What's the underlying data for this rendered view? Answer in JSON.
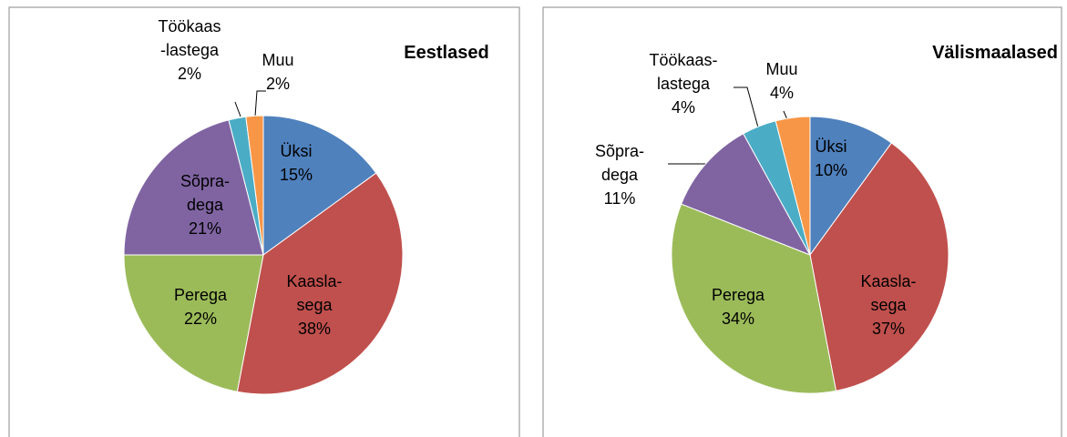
{
  "chart_data": [
    {
      "type": "pie",
      "title": "Eestlased",
      "categories": [
        "Üksi",
        "Kaasla-\nsega",
        "Perega",
        "Sõpra-\ndega",
        "Töökaas\n-lastega",
        "Muu"
      ],
      "values": [
        15,
        38,
        22,
        21,
        2,
        2
      ],
      "value_labels": [
        "15%",
        "38%",
        "22%",
        "21%",
        "2%",
        "2%"
      ],
      "colors": [
        "#4f81bd",
        "#c0504d",
        "#9bbb59",
        "#8064a2",
        "#4bacc6",
        "#f79646"
      ]
    },
    {
      "type": "pie",
      "title": "Välismaalased",
      "categories": [
        "Üksi",
        "Kaasla-\nsega",
        "Perega",
        "Sõpra-\ndega",
        "Töökaas-\nlastega",
        "Muu"
      ],
      "values": [
        10,
        37,
        34,
        11,
        4,
        4
      ],
      "value_labels": [
        "10%",
        "37%",
        "34%",
        "11%",
        "4%",
        "4%"
      ],
      "colors": [
        "#4f81bd",
        "#c0504d",
        "#9bbb59",
        "#8064a2",
        "#4bacc6",
        "#f79646"
      ]
    }
  ]
}
